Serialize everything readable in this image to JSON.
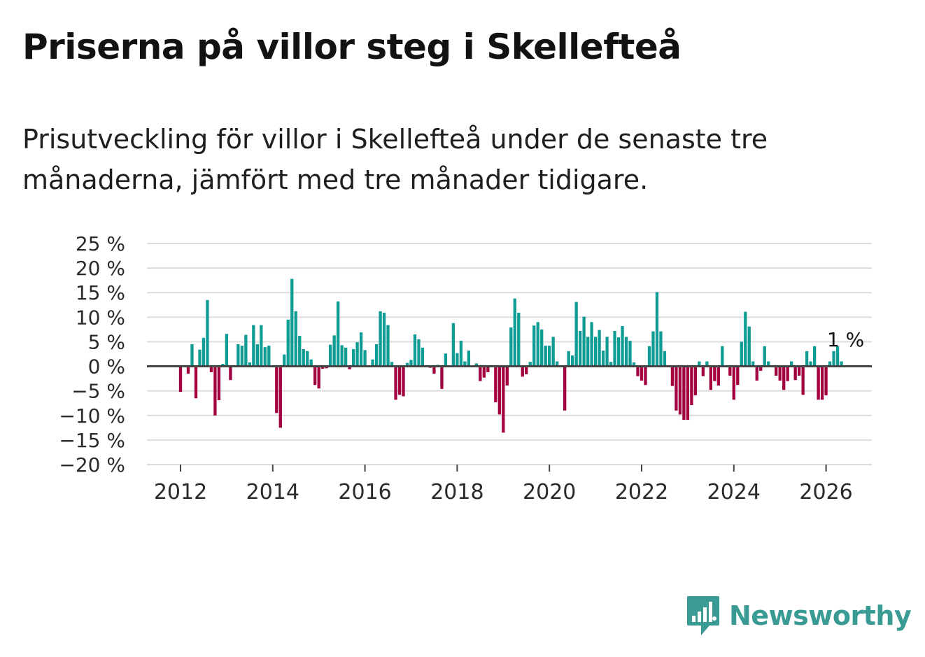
{
  "title": "Priserna på villor steg i Skellefteå",
  "subtitle": "Prisutveckling för villor i Skellefteå under de senaste tre månaderna, jämfört med tre månader tidigare.",
  "brand": "Newsworthy",
  "colors": {
    "positive": "#0f9c95",
    "negative": "#a3003f",
    "grid": "#dcdcdc",
    "zero": "#444444",
    "brand": "#3a9a94"
  },
  "chart_data": {
    "type": "bar",
    "title": "Priserna på villor steg i Skellefteå",
    "ylabel": "",
    "xlabel": "",
    "ylim": [
      -20,
      25
    ],
    "yticks": [
      25,
      20,
      15,
      10,
      5,
      0,
      -5,
      -10,
      -15,
      -20
    ],
    "ytick_labels": [
      "25 %",
      "20 %",
      "15 %",
      "10 %",
      "5 %",
      "0 %",
      "−5 %",
      "−10 %",
      "−15 %",
      "−20 %"
    ],
    "xticks": [
      2012,
      2014,
      2016,
      2018,
      2020,
      2022,
      2024,
      2026
    ],
    "x_start": 2012.0,
    "step": 0.0833333,
    "annotation": "1 %",
    "values": [
      -5.2,
      0,
      -1.5,
      4.5,
      -6.5,
      3.4,
      5.8,
      13.5,
      -1.2,
      -10,
      -6.9,
      0.5,
      6.6,
      -2.8,
      0,
      4.5,
      4.2,
      6.4,
      0.8,
      8.4,
      4.5,
      8.4,
      3.9,
      4.2,
      0,
      -9.5,
      -12.5,
      2.4,
      9.5,
      17.8,
      11.2,
      6.2,
      3.5,
      3.1,
      1.4,
      -3.8,
      -4.5,
      -0.5,
      -0.4,
      4.4,
      6.3,
      13.2,
      4.3,
      3.8,
      -0.6,
      3.5,
      4.9,
      6.9,
      3.3,
      0,
      1.4,
      4.5,
      11.2,
      10.9,
      8.4,
      0.9,
      -6.8,
      -5.8,
      -6.1,
      0.7,
      1.3,
      6.5,
      5.5,
      3.8,
      0,
      -0.3,
      -1.5,
      0.3,
      -4.6,
      2.6,
      0,
      8.8,
      2.7,
      5.2,
      1,
      3.2,
      0,
      0.6,
      -3,
      -2.3,
      -1.2,
      0,
      -7.3,
      -9.8,
      -13.5,
      -3.9,
      7.9,
      13.8,
      10.9,
      -2.1,
      -1.6,
      0.9,
      8.3,
      9,
      7.5,
      4.2,
      4.2,
      6,
      1,
      0,
      -9,
      3.1,
      2.2,
      13.1,
      7.2,
      10.1,
      6,
      9,
      6,
      7.4,
      3.2,
      6,
      0.9,
      7.2,
      5.9,
      8.2,
      6,
      5.2,
      0.8,
      -2,
      -2.9,
      -3.8,
      4.1,
      7.1,
      15.1,
      7.1,
      3.1,
      0,
      -4,
      -9,
      -9.8,
      -10.9,
      -10.9,
      -7.9,
      -5.9,
      1,
      -2,
      1,
      -4.8,
      -3,
      -3.9,
      4.1,
      0,
      -1.9,
      -6.8,
      -3.8,
      5,
      11.1,
      8.1,
      1,
      -2.9,
      -0.9,
      4.1,
      1,
      0,
      -1.9,
      -2.9,
      -4.8,
      -3,
      1,
      -2.8,
      -1.9,
      -5.8,
      3.1,
      1,
      4.1,
      -6.8,
      -6.8,
      -5.9,
      1,
      3.1,
      4.1,
      1
    ]
  }
}
